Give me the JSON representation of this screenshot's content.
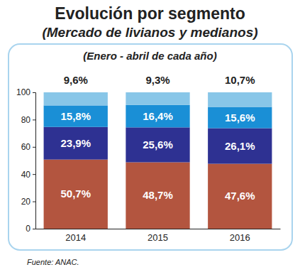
{
  "chart_data": {
    "type": "bar",
    "title": "Evolución por segmento",
    "subtitle": "(Mercado de livianos y medianos)",
    "annotations": [
      "(Enero - abril de cada año)"
    ],
    "source": "Fuente: ANAC.",
    "categories": [
      "2014",
      "2015",
      "2016"
    ],
    "stacked": true,
    "data_labels": true,
    "grid": false,
    "ylim": [
      0,
      100
    ],
    "yticks": [
      0,
      20,
      40,
      60,
      80,
      100
    ],
    "series": [
      {
        "color": "#b3553f",
        "values": [
          50.7,
          48.7,
          47.6
        ],
        "value_labels": [
          "50,7%",
          "48,7%",
          "47,6%"
        ]
      },
      {
        "color": "#2e3192",
        "values": [
          23.9,
          25.6,
          26.1
        ],
        "value_labels": [
          "23,9%",
          "25,6%",
          "26,1%"
        ]
      },
      {
        "color": "#1a8fd6",
        "values": [
          15.8,
          16.4,
          15.6
        ],
        "value_labels": [
          "15,8%",
          "16,4%",
          "15,6%"
        ]
      },
      {
        "color": "#88c6e8",
        "values": [
          9.6,
          9.3,
          10.7
        ],
        "value_labels": [
          "9,6%",
          "9,3%",
          "10,7%"
        ]
      }
    ]
  }
}
